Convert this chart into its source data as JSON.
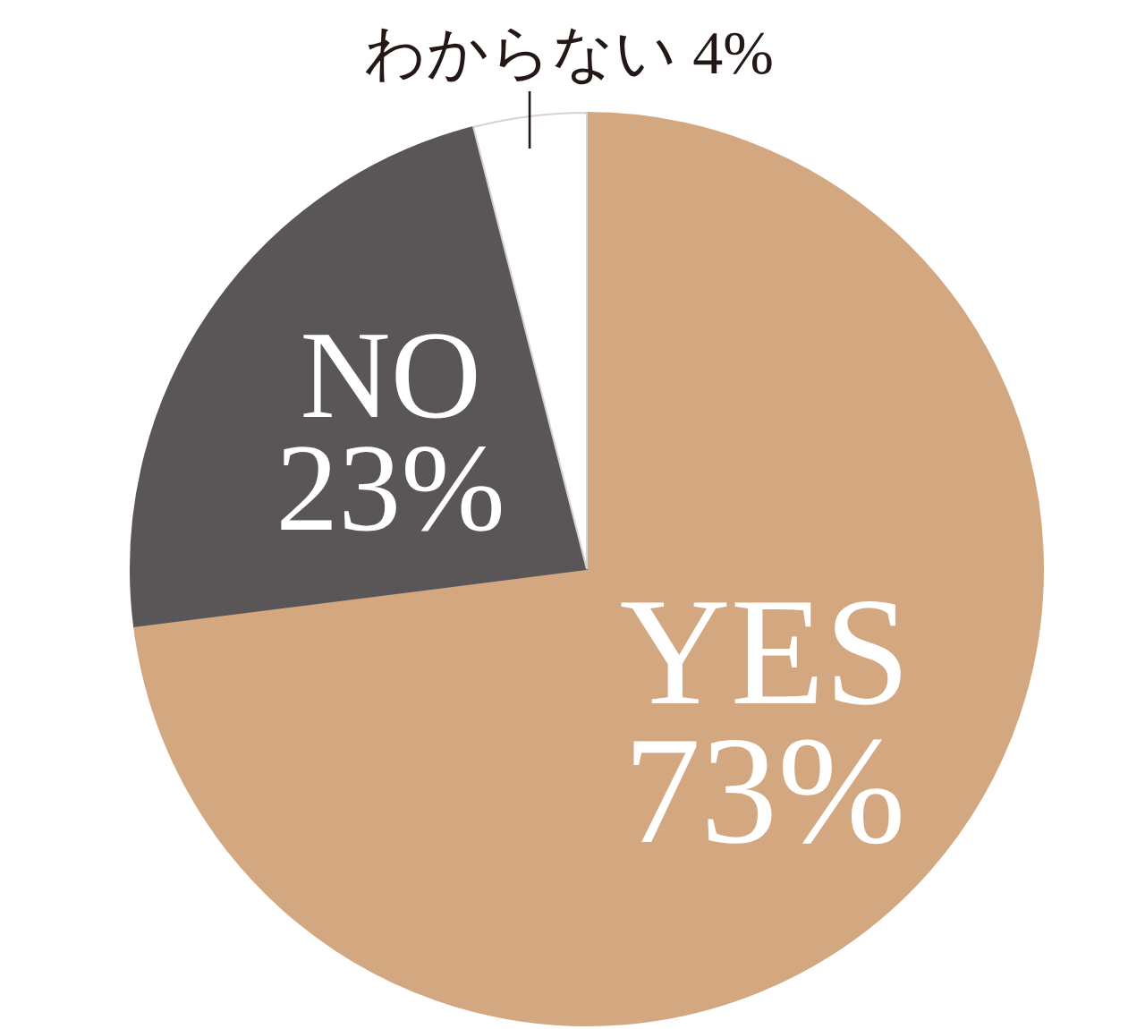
{
  "chart_data": {
    "type": "pie",
    "categories": [
      "YES",
      "NO",
      "わからない"
    ],
    "values": [
      73,
      23,
      4
    ],
    "value_labels": [
      "73%",
      "23%",
      "4%"
    ],
    "colors": [
      "#d3a880",
      "#5a5657",
      "#ffffff"
    ]
  }
}
